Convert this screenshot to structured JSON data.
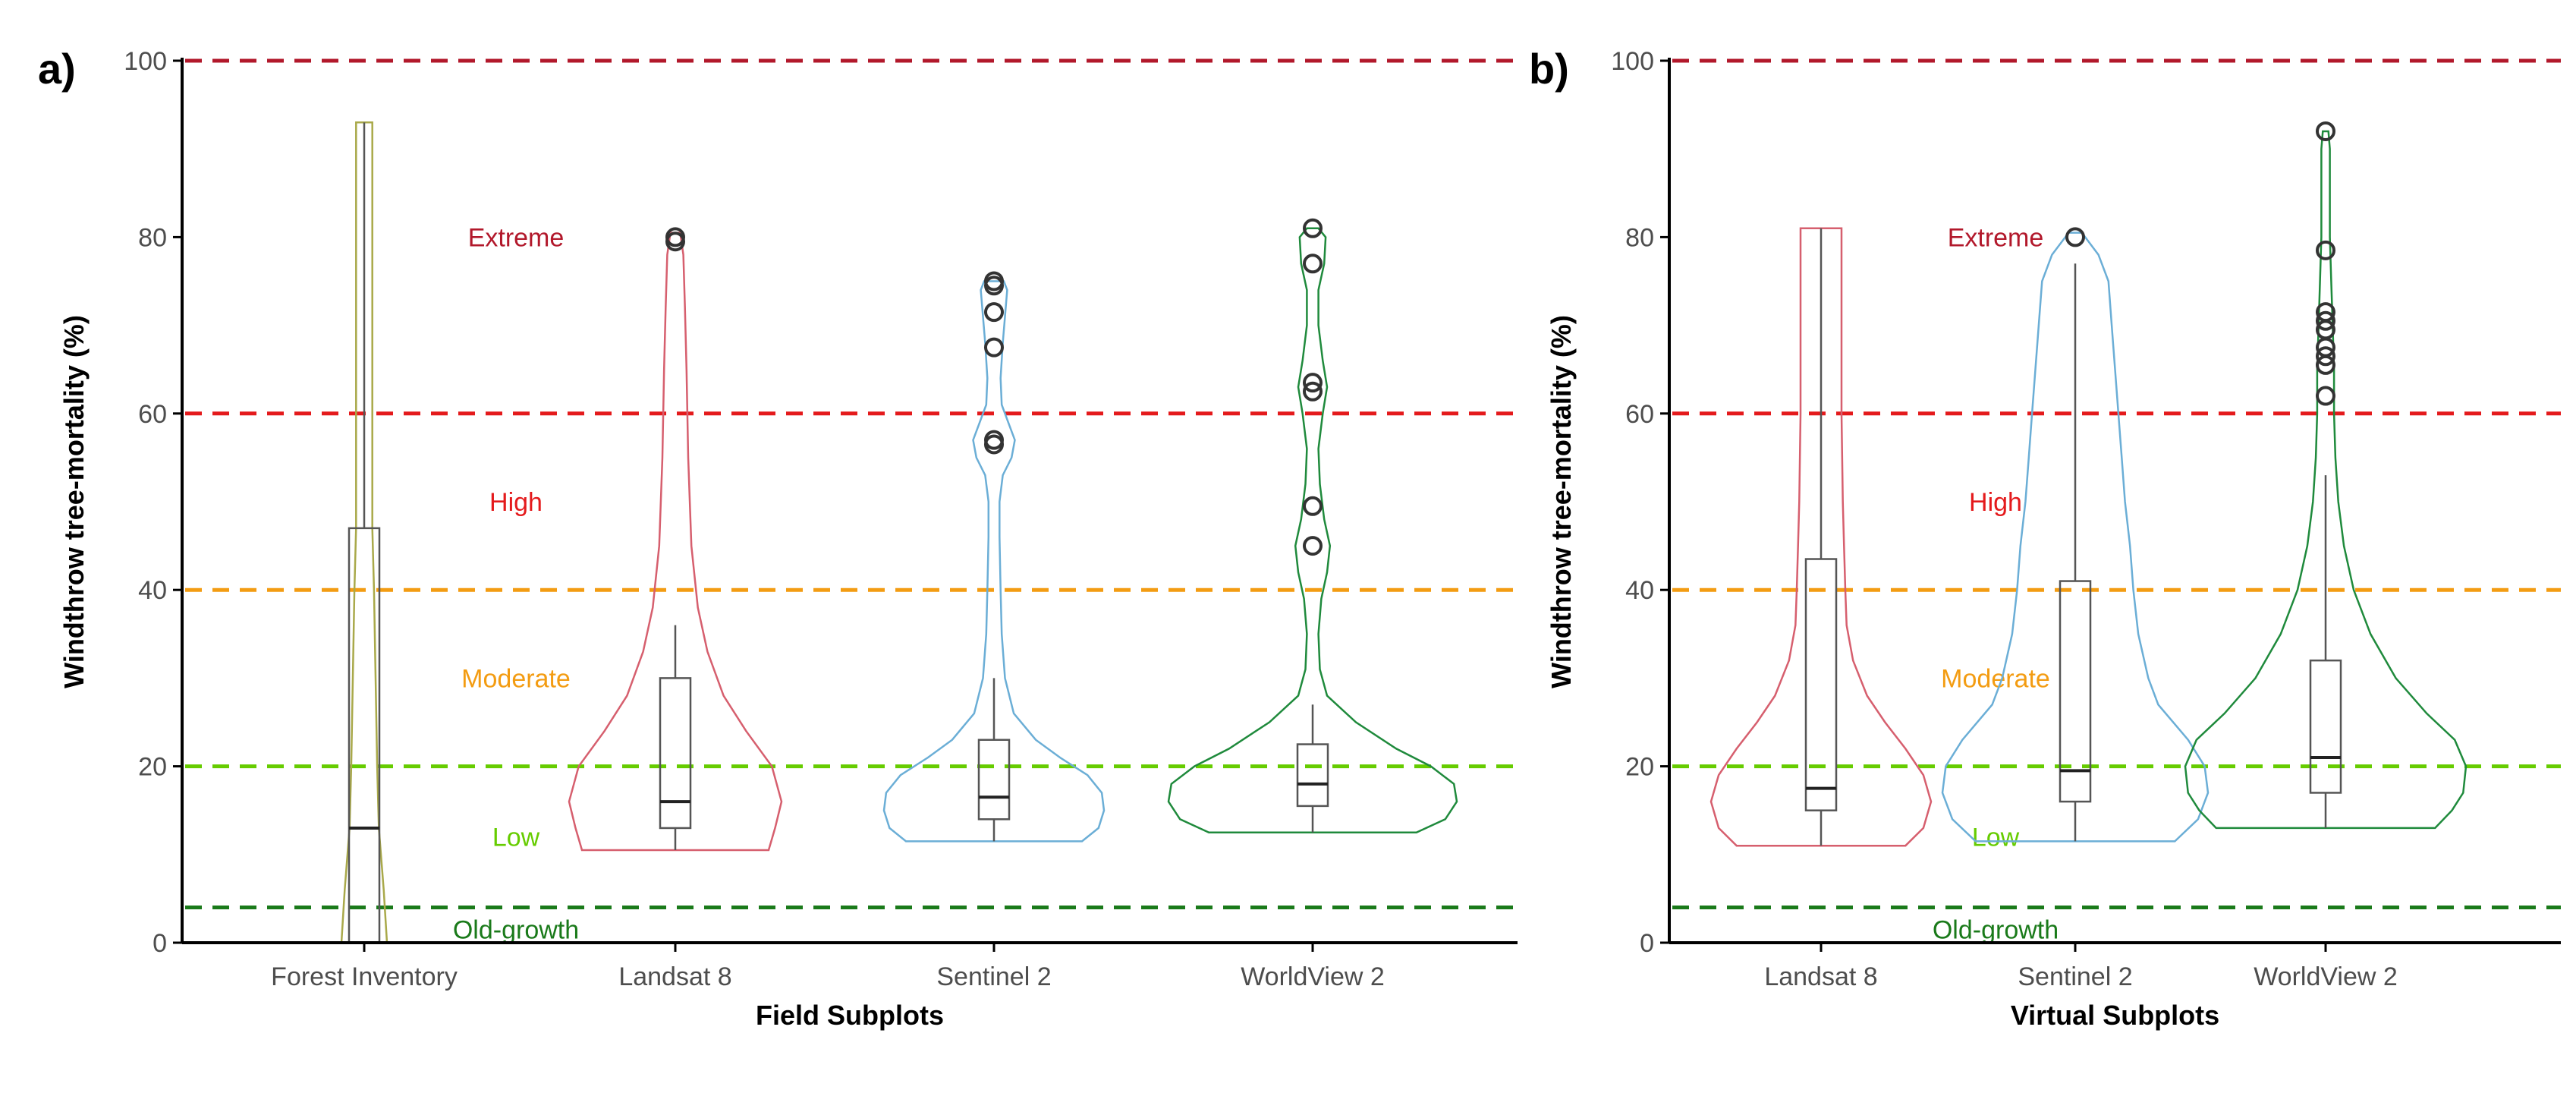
{
  "colors": {
    "extreme": "#b2182b",
    "high": "#e41a1c",
    "moderate": "#f39c12",
    "low": "#66cc00",
    "old_growth": "#1a7a1a",
    "forest_inventory": "#a9a94a",
    "landsat_8": "#d65f6e",
    "sentinel_2": "#6baed6",
    "worldview_2": "#1f8a3c",
    "box": "#555555",
    "outlier": "#333333",
    "axis": "#000000"
  },
  "chart_data": [
    {
      "type": "violin",
      "panel_label": "a)",
      "title": "",
      "xlabel": "Field Subplots",
      "ylabel": "Windthrow tree-mortality (%)",
      "ylim": [
        0,
        100
      ],
      "yticks": [
        0,
        20,
        40,
        60,
        80,
        100
      ],
      "thresholds": [
        {
          "value": 100,
          "color_key": "extreme"
        },
        {
          "value": 60,
          "color_key": "high"
        },
        {
          "value": 40,
          "color_key": "moderate"
        },
        {
          "value": 20,
          "color_key": "low"
        },
        {
          "value": 4,
          "color_key": "old_growth"
        }
      ],
      "zones": [
        {
          "label": "Extreme",
          "y": 80,
          "color_key": "extreme"
        },
        {
          "label": "High",
          "y": 50,
          "color_key": "high"
        },
        {
          "label": "Moderate",
          "y": 30,
          "color_key": "moderate"
        },
        {
          "label": "Low",
          "y": 12,
          "color_key": "low"
        },
        {
          "label": "Old-growth",
          "y": 1.5,
          "color_key": "old_growth"
        }
      ],
      "categories": [
        "Forest Inventory",
        "Landsat 8",
        "Sentinel 2",
        "WorldView 2"
      ],
      "series": [
        {
          "name": "Forest Inventory",
          "color_key": "forest_inventory",
          "box": {
            "q1": 0,
            "median": 13,
            "q3": 47,
            "whisker_low": 0,
            "whisker_high": 93
          },
          "outliers": [],
          "density": [
            [
              0,
              0.14
            ],
            [
              6,
              0.12
            ],
            [
              13,
              0.09
            ],
            [
              20,
              0.08
            ],
            [
              30,
              0.07
            ],
            [
              40,
              0.06
            ],
            [
              47,
              0.05
            ],
            [
              50,
              0.05
            ],
            [
              60,
              0.05
            ],
            [
              70,
              0.05
            ],
            [
              80,
              0.05
            ],
            [
              90,
              0.05
            ],
            [
              93,
              0.05
            ]
          ]
        },
        {
          "name": "Landsat 8",
          "color_key": "landsat_8",
          "box": {
            "q1": 13,
            "median": 16,
            "q3": 30,
            "whisker_low": 10.5,
            "whisker_high": 36
          },
          "outliers": [
            79.5,
            80
          ],
          "density": [
            [
              10.5,
              0.58
            ],
            [
              13,
              0.62
            ],
            [
              16,
              0.66
            ],
            [
              20,
              0.6
            ],
            [
              24,
              0.44
            ],
            [
              28,
              0.3
            ],
            [
              33,
              0.2
            ],
            [
              38,
              0.14
            ],
            [
              45,
              0.1
            ],
            [
              55,
              0.08
            ],
            [
              65,
              0.07
            ],
            [
              72,
              0.06
            ],
            [
              78,
              0.05
            ],
            [
              80.5,
              0.03
            ]
          ]
        },
        {
          "name": "Sentinel 2",
          "color_key": "sentinel_2",
          "box": {
            "q1": 14,
            "median": 16.5,
            "q3": 23,
            "whisker_low": 11.5,
            "whisker_high": 30
          },
          "outliers": [
            56.5,
            57,
            67.5,
            71.5,
            74.5,
            75
          ],
          "density": [
            [
              11.5,
              0.8
            ],
            [
              13,
              0.95
            ],
            [
              15,
              1.0
            ],
            [
              17,
              0.98
            ],
            [
              19,
              0.85
            ],
            [
              21,
              0.6
            ],
            [
              23,
              0.38
            ],
            [
              26,
              0.18
            ],
            [
              30,
              0.1
            ],
            [
              35,
              0.07
            ],
            [
              40,
              0.06
            ],
            [
              46,
              0.05
            ],
            [
              50,
              0.05
            ],
            [
              53,
              0.08
            ],
            [
              55,
              0.16
            ],
            [
              57,
              0.19
            ],
            [
              59,
              0.13
            ],
            [
              61,
              0.07
            ],
            [
              64,
              0.06
            ],
            [
              68,
              0.08
            ],
            [
              71,
              0.1
            ],
            [
              74,
              0.12
            ],
            [
              75,
              0.09
            ]
          ]
        },
        {
          "name": "WorldView 2",
          "color_key": "worldview_2",
          "box": {
            "q1": 15.5,
            "median": 18,
            "q3": 22.5,
            "whisker_low": 12.5,
            "whisker_high": 27
          },
          "outliers": [
            45,
            49.5,
            62.5,
            63.5,
            77,
            81
          ],
          "density": [
            [
              12.5,
              0.72
            ],
            [
              14,
              0.92
            ],
            [
              16,
              1.0
            ],
            [
              18,
              0.98
            ],
            [
              20,
              0.82
            ],
            [
              22,
              0.58
            ],
            [
              25,
              0.3
            ],
            [
              28,
              0.1
            ],
            [
              31,
              0.05
            ],
            [
              35,
              0.04
            ],
            [
              39,
              0.06
            ],
            [
              42,
              0.1
            ],
            [
              45,
              0.12
            ],
            [
              48,
              0.08
            ],
            [
              52,
              0.05
            ],
            [
              56,
              0.04
            ],
            [
              60,
              0.07
            ],
            [
              63,
              0.1
            ],
            [
              66,
              0.07
            ],
            [
              70,
              0.04
            ],
            [
              74,
              0.04
            ],
            [
              77,
              0.08
            ],
            [
              80,
              0.09
            ],
            [
              81,
              0.04
            ]
          ]
        }
      ]
    },
    {
      "type": "violin",
      "panel_label": "b)",
      "title": "",
      "xlabel": "Virtual Subplots",
      "ylabel": "Windthrow tree-mortality (%)",
      "ylim": [
        0,
        100
      ],
      "yticks": [
        0,
        20,
        40,
        60,
        80,
        100
      ],
      "thresholds": [
        {
          "value": 100,
          "color_key": "extreme"
        },
        {
          "value": 60,
          "color_key": "high"
        },
        {
          "value": 40,
          "color_key": "moderate"
        },
        {
          "value": 20,
          "color_key": "low"
        },
        {
          "value": 4,
          "color_key": "old_growth"
        }
      ],
      "zones": [
        {
          "label": "Extreme",
          "y": 80,
          "color_key": "extreme"
        },
        {
          "label": "High",
          "y": 50,
          "color_key": "high"
        },
        {
          "label": "Moderate",
          "y": 30,
          "color_key": "moderate"
        },
        {
          "label": "Low",
          "y": 12,
          "color_key": "low"
        },
        {
          "label": "Old-growth",
          "y": 1.5,
          "color_key": "old_growth"
        }
      ],
      "categories": [
        "Landsat 8",
        "Sentinel 2",
        "WorldView 2"
      ],
      "series": [
        {
          "name": "Landsat 8",
          "color_key": "landsat_8",
          "box": {
            "q1": 15,
            "median": 17.5,
            "q3": 43.5,
            "whisker_low": 11,
            "whisker_high": 81
          },
          "outliers": [],
          "density": [
            [
              11,
              0.66
            ],
            [
              13,
              0.8
            ],
            [
              16,
              0.86
            ],
            [
              19,
              0.8
            ],
            [
              22,
              0.66
            ],
            [
              25,
              0.5
            ],
            [
              28,
              0.36
            ],
            [
              32,
              0.25
            ],
            [
              36,
              0.2
            ],
            [
              40,
              0.19
            ],
            [
              45,
              0.18
            ],
            [
              50,
              0.17
            ],
            [
              60,
              0.16
            ],
            [
              70,
              0.16
            ],
            [
              78,
              0.16
            ],
            [
              81,
              0.16
            ]
          ]
        },
        {
          "name": "Sentinel 2",
          "color_key": "sentinel_2",
          "box": {
            "q1": 16,
            "median": 19.5,
            "q3": 41,
            "whisker_low": 11.5,
            "whisker_high": 77
          },
          "outliers": [
            80
          ],
          "density": [
            [
              11.5,
              0.6
            ],
            [
              14,
              0.74
            ],
            [
              17,
              0.8
            ],
            [
              20,
              0.78
            ],
            [
              23,
              0.68
            ],
            [
              27,
              0.5
            ],
            [
              30,
              0.44
            ],
            [
              35,
              0.38
            ],
            [
              40,
              0.35
            ],
            [
              45,
              0.33
            ],
            [
              50,
              0.3
            ],
            [
              55,
              0.28
            ],
            [
              60,
              0.26
            ],
            [
              65,
              0.24
            ],
            [
              70,
              0.22
            ],
            [
              75,
              0.2
            ],
            [
              78,
              0.14
            ],
            [
              80.5,
              0.04
            ]
          ]
        },
        {
          "name": "WorldView 2",
          "color_key": "worldview_2",
          "box": {
            "q1": 17,
            "median": 21,
            "q3": 32,
            "whisker_low": 13,
            "whisker_high": 53
          },
          "outliers": [
            62,
            65.5,
            66.5,
            67.5,
            69.5,
            70.5,
            71.5,
            78.5,
            92
          ],
          "density": [
            [
              13,
              0.78
            ],
            [
              15,
              0.9
            ],
            [
              17,
              0.98
            ],
            [
              20,
              1.0
            ],
            [
              23,
              0.92
            ],
            [
              26,
              0.72
            ],
            [
              30,
              0.5
            ],
            [
              35,
              0.32
            ],
            [
              40,
              0.2
            ],
            [
              45,
              0.13
            ],
            [
              50,
              0.09
            ],
            [
              55,
              0.07
            ],
            [
              60,
              0.06
            ],
            [
              65,
              0.06
            ],
            [
              70,
              0.05
            ],
            [
              75,
              0.04
            ],
            [
              80,
              0.03
            ],
            [
              85,
              0.03
            ],
            [
              90,
              0.03
            ],
            [
              92,
              0.02
            ]
          ]
        }
      ]
    }
  ]
}
